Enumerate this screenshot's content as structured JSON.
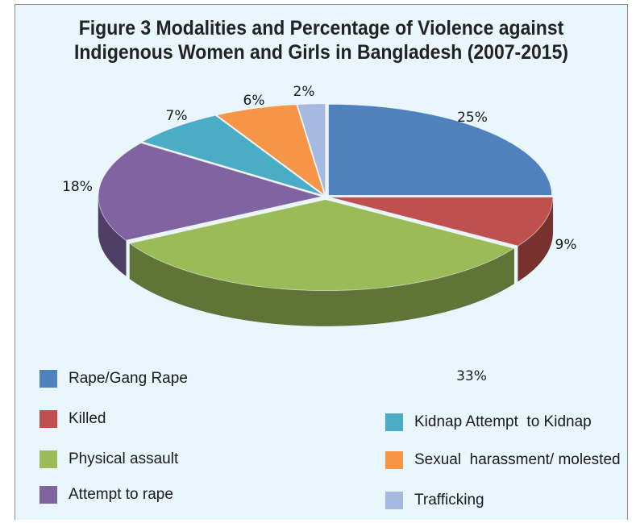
{
  "chart_data": {
    "type": "pie",
    "title": "Figure 3 Modalities and Percentage of Violence against Indigenous Women and Girls in Bangladesh (2007-2015)",
    "title_lines": [
      "Figure 3 Modalities and Percentage of Violence against",
      "Indigenous Women and Girls in Bangladesh (2007-2015)"
    ],
    "style": "3d-exploded-pie",
    "legend_position": "bottom",
    "slices": [
      {
        "name": "Rape/Gang Rape",
        "value": 25,
        "label": "25%",
        "color": "#4f81bd"
      },
      {
        "name": "Killed",
        "value": 9,
        "label": "9%",
        "color": "#c0504d"
      },
      {
        "name": "Physical assault",
        "value": 33,
        "label": "33%",
        "color": "#9bbb59"
      },
      {
        "name": "Attempt to rape",
        "value": 18,
        "label": "18%",
        "color": "#8064a2"
      },
      {
        "name": "Kidnap Attempt  to Kidnap",
        "value": 7,
        "label": "7%",
        "color": "#4bacc6"
      },
      {
        "name": "Sexual  harassment/ molested",
        "value": 6,
        "label": "6%",
        "color": "#f79646"
      },
      {
        "name": "Trafficking",
        "value": 2,
        "label": "2%",
        "color": "#a5b9e1"
      }
    ]
  }
}
